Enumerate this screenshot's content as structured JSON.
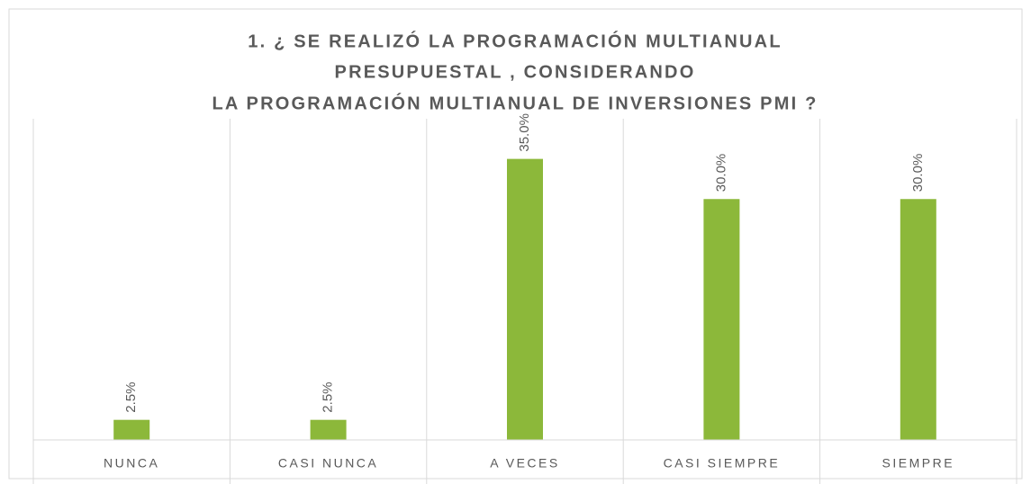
{
  "chart_data": {
    "type": "bar",
    "title": [
      "1. ¿ SE REALIZÓ LA PROGRAMACIÓN MULTIANUAL",
      "PRESUPUESTAL , CONSIDERANDO",
      "LA PROGRAMACIÓN MULTIANUAL DE INVERSIONES PMI ?"
    ],
    "categories": [
      "NUNCA",
      "CASI NUNCA",
      "A VECES",
      "CASI SIEMPRE",
      "SIEMPRE"
    ],
    "values": [
      2.5,
      2.5,
      35,
      30,
      30
    ],
    "value_labels": [
      "2.5%",
      "2.5%",
      "35.0%",
      "30.0%",
      "30.0%"
    ],
    "color": "#8cb83a",
    "ylim": [
      0,
      40
    ]
  }
}
